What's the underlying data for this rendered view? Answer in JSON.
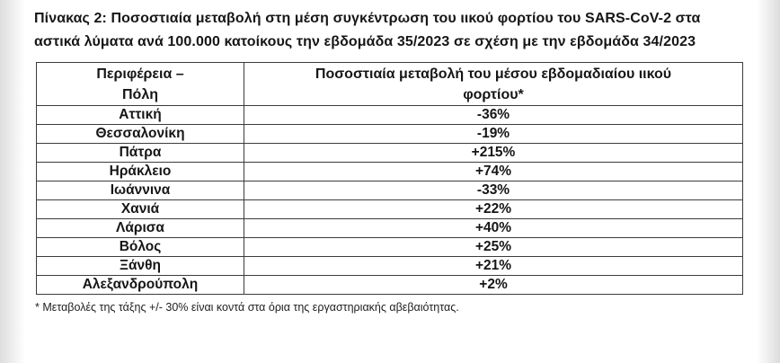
{
  "page": {
    "title_line1": "Πίνακας 2: Ποσοστιαία μεταβολή στη μέση συγκέντρωση του ιικού φορτίου του SARS-CoV-2 στα",
    "title_line2": "αστικά λύματα ανά 100.000 κατοίκους την εβδομάδα 35/2023 σε σχέση με την εβδομάδα 34/2023",
    "footnote": "* Μεταβολές της τάξης +/- 30% είναι κοντά στα όρια της εργαστηριακής αβεβαιότητας."
  },
  "table": {
    "header": {
      "col1": "Περιφέρεια –\nΠόλη",
      "col2": "Ποσοστιαία μεταβολή του μέσου εβδομαδιαίου ιικού\nφορτίου*"
    },
    "rows": [
      {
        "region": "Αττική",
        "change": "-36%"
      },
      {
        "region": "Θεσσαλονίκη",
        "change": "-19%"
      },
      {
        "region": "Πάτρα",
        "change": "+215%"
      },
      {
        "region": "Ηράκλειο",
        "change": "+74%"
      },
      {
        "region": "Ιωάννινα",
        "change": "-33%"
      },
      {
        "region": "Χανιά",
        "change": "+22%"
      },
      {
        "region": "Λάρισα",
        "change": "+40%"
      },
      {
        "region": "Βόλος",
        "change": "+25%"
      },
      {
        "region": "Ξάνθη",
        "change": "+21%"
      },
      {
        "region": "Αλεξανδρούπολη",
        "change": "+2%"
      }
    ]
  }
}
